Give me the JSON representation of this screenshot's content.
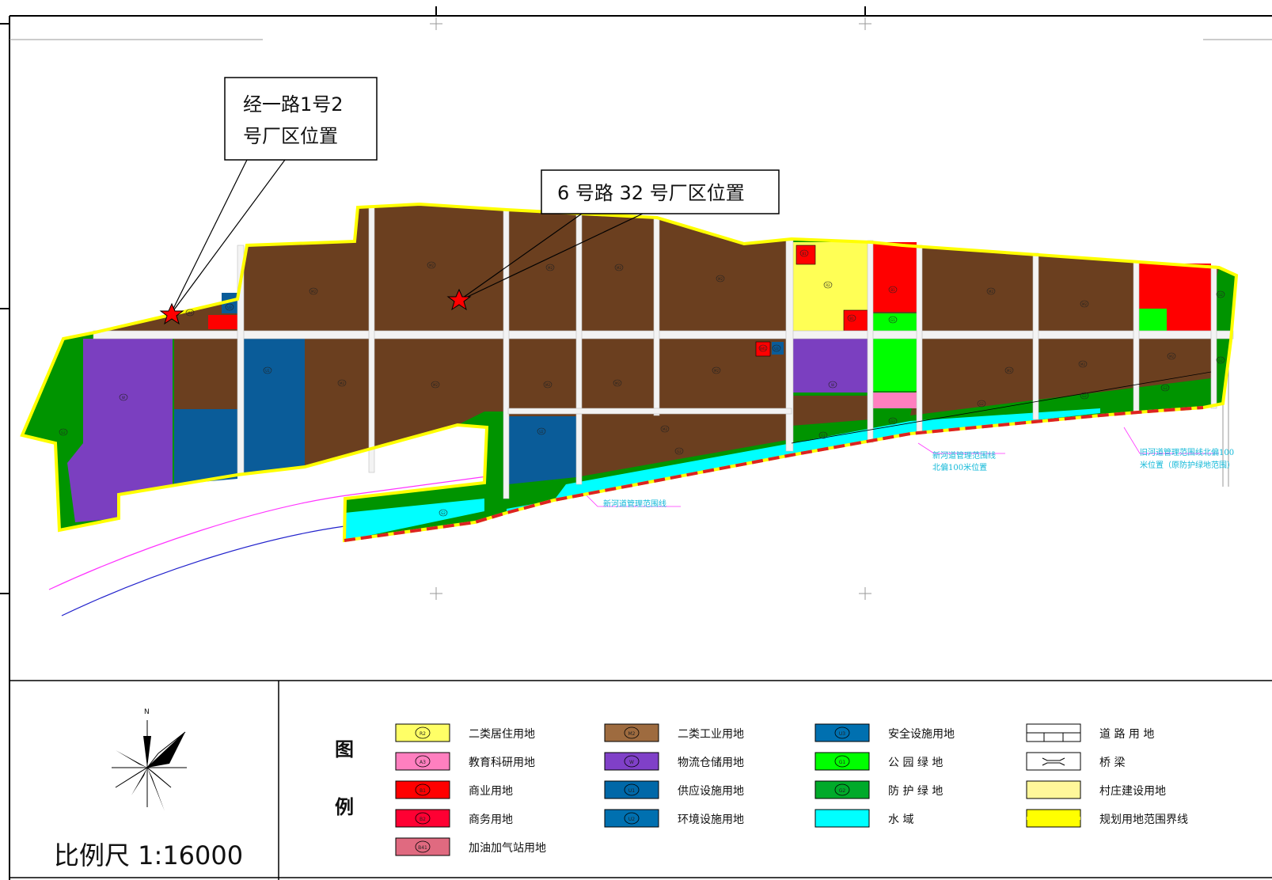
{
  "callouts": [
    {
      "name": "callout-jingyi-road",
      "line1": "经一路1号2",
      "line2": "号厂区位置"
    },
    {
      "name": "callout-road6",
      "line1": "6 号路 32 号厂区位置"
    }
  ],
  "canal_labels": {
    "new_river_line": "新河道管理范围线",
    "new_river_north_1": "新河道管理范围线",
    "new_river_north_2": "北偏100米位置",
    "old_river_1": "旧河道管理范围线北偏100",
    "old_river_2": "米位置（原防护绿地范围）"
  },
  "scale": {
    "label": "比例尺  1:16000"
  },
  "north_arrow": {
    "letter": "N"
  },
  "legend": {
    "title_top": "图",
    "title_bottom": "例",
    "items": [
      {
        "label": "二类居住用地",
        "code": "R2",
        "color": "#ffff66"
      },
      {
        "label": "教育科研用地",
        "code": "A3",
        "color": "#ff7fbf"
      },
      {
        "label": "商业用地",
        "code": "B1",
        "color": "#ff0000"
      },
      {
        "label": "商务用地",
        "code": "B2",
        "color": "#ff0033"
      },
      {
        "label": "加油加气站用地",
        "code": "B41",
        "color": "#e06a80"
      },
      {
        "label": "二类工业用地",
        "code": "M2",
        "color": "#9e6b3f"
      },
      {
        "label": "物流仓储用地",
        "code": "W",
        "color": "#8040c8"
      },
      {
        "label": "供应设施用地",
        "code": "U1",
        "color": "#0068a8"
      },
      {
        "label": "环境设施用地",
        "code": "U2",
        "color": "#0070b0"
      },
      {
        "label": "安全设施用地",
        "code": "U3",
        "color": "#0070b0"
      },
      {
        "label": "公 园 绿 地",
        "code": "G1",
        "color": "#00ff00"
      },
      {
        "label": "防 护 绿 地",
        "code": "G2",
        "color": "#00aa2a"
      },
      {
        "label": "水          域",
        "code": "",
        "color": "#00ffff"
      },
      {
        "label": "道 路 用 地",
        "code": "",
        "color": "#ffffff"
      },
      {
        "label": "桥      梁",
        "code": "",
        "color": "#ffffff"
      },
      {
        "label": "村庄建设用地",
        "code": "",
        "color": "#fff79a"
      },
      {
        "label": "规划用地范围界线",
        "code": "",
        "color": "#ffff00"
      }
    ]
  },
  "colors": {
    "industrial": "#6b3f1f",
    "logistics": "#7b3fc0",
    "utility": "#0a5c99",
    "residential": "#ffff55",
    "commercial": "#ff0000",
    "park": "#00ff00",
    "protective": "#009400",
    "water": "#00ffff",
    "education": "#ff7fbf",
    "boundary": "#ffff00",
    "river_red": "#dd2222"
  },
  "parcel_codes": {
    "m2": "M2",
    "w": "W",
    "u1": "U1",
    "u2": "U2",
    "u3": "U3",
    "g1": "G1",
    "g2": "G2",
    "r2": "R2",
    "b1": "B1",
    "b41": "B41",
    "a3": "A3"
  }
}
